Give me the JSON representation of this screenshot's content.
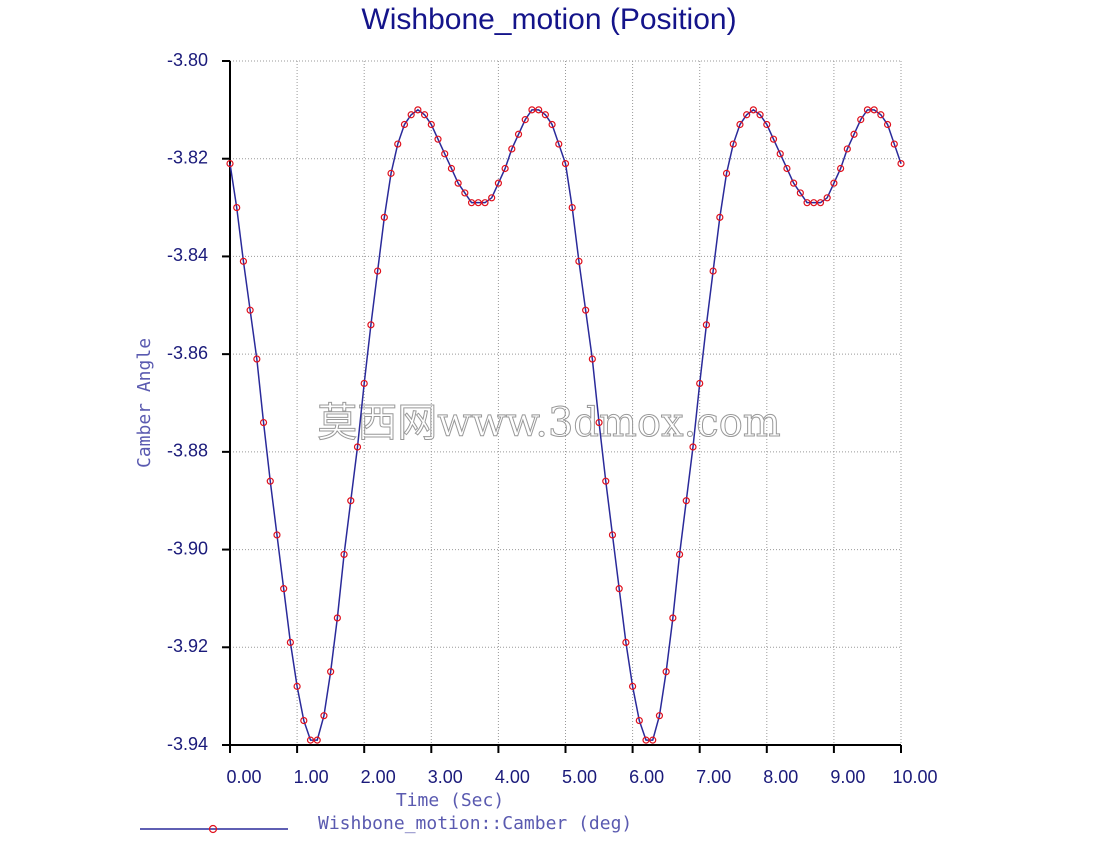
{
  "chart_data": {
    "type": "line",
    "title": "Wishbone_motion (Position)",
    "x_label": "Time (Sec)",
    "y_label": "Camber Angle",
    "watermark": "莫西网www.3dmox.com",
    "grid": true,
    "xlim": [
      0,
      10
    ],
    "xticks": [
      {
        "value": 0,
        "label": "0.00"
      },
      {
        "value": 1,
        "label": "1.00"
      },
      {
        "value": 2,
        "label": "2.00"
      },
      {
        "value": 3,
        "label": "3.00"
      },
      {
        "value": 4,
        "label": "4.00"
      },
      {
        "value": 5,
        "label": "5.00"
      },
      {
        "value": 6,
        "label": "6.00"
      },
      {
        "value": 7,
        "label": "7.00"
      },
      {
        "value": 8,
        "label": "8.00"
      },
      {
        "value": 9,
        "label": "9.00"
      },
      {
        "value": 10,
        "label": "10.00"
      }
    ],
    "ylim": [
      -3.94,
      -3.8
    ],
    "yticks": [
      {
        "value": -3.8,
        "label": "-3.80"
      },
      {
        "value": -3.82,
        "label": "-3.82"
      },
      {
        "value": -3.84,
        "label": "-3.84"
      },
      {
        "value": -3.86,
        "label": "-3.86"
      },
      {
        "value": -3.88,
        "label": "-3.88"
      },
      {
        "value": -3.9,
        "label": "-3.90"
      },
      {
        "value": -3.92,
        "label": "-3.92"
      },
      {
        "value": -3.94,
        "label": "-3.94"
      }
    ],
    "x": [
      0,
      0.1,
      0.2,
      0.3,
      0.4,
      0.5,
      0.6,
      0.7,
      0.8,
      0.9,
      1,
      1.1,
      1.2,
      1.3,
      1.4,
      1.5,
      1.6,
      1.7,
      1.8,
      1.9,
      2,
      2.1,
      2.2,
      2.3,
      2.4,
      2.5,
      2.6,
      2.7,
      2.8,
      2.9,
      3,
      3.1,
      3.2,
      3.3,
      3.4,
      3.5,
      3.6,
      3.7,
      3.8,
      3.9,
      4,
      4.1,
      4.2,
      4.3,
      4.4,
      4.5,
      4.6,
      4.7,
      4.8,
      4.9,
      5,
      5.1,
      5.2,
      5.3,
      5.4,
      5.5,
      5.6,
      5.7,
      5.8,
      5.9,
      6,
      6.1,
      6.2,
      6.3,
      6.4,
      6.5,
      6.6,
      6.7,
      6.8,
      6.9,
      7,
      7.1,
      7.2,
      7.3,
      7.4,
      7.5,
      7.6,
      7.7,
      7.8,
      7.9,
      8,
      8.1,
      8.2,
      8.3,
      8.4,
      8.5,
      8.6,
      8.7,
      8.8,
      8.9,
      9,
      9.1,
      9.2,
      9.3,
      9.4,
      9.5,
      9.6,
      9.7,
      9.8,
      9.9,
      10
    ],
    "series": [
      {
        "name": "Wishbone_motion::Camber (deg)",
        "color": "#2a2a9a",
        "marker_color": "#e0101c",
        "values": [
          -3.821,
          -3.83,
          -3.841,
          -3.851,
          -3.861,
          -3.874,
          -3.886,
          -3.897,
          -3.908,
          -3.919,
          -3.928,
          -3.935,
          -3.939,
          -3.939,
          -3.934,
          -3.925,
          -3.914,
          -3.901,
          -3.89,
          -3.879,
          -3.866,
          -3.854,
          -3.843,
          -3.832,
          -3.823,
          -3.817,
          -3.813,
          -3.811,
          -3.81,
          -3.811,
          -3.813,
          -3.816,
          -3.819,
          -3.822,
          -3.825,
          -3.827,
          -3.829,
          -3.829,
          -3.829,
          -3.828,
          -3.825,
          -3.822,
          -3.818,
          -3.815,
          -3.812,
          -3.81,
          -3.81,
          -3.811,
          -3.813,
          -3.817,
          -3.821,
          -3.83,
          -3.841,
          -3.851,
          -3.861,
          -3.874,
          -3.886,
          -3.897,
          -3.908,
          -3.919,
          -3.928,
          -3.935,
          -3.939,
          -3.939,
          -3.934,
          -3.925,
          -3.914,
          -3.901,
          -3.89,
          -3.879,
          -3.866,
          -3.854,
          -3.843,
          -3.832,
          -3.823,
          -3.817,
          -3.813,
          -3.811,
          -3.81,
          -3.811,
          -3.813,
          -3.816,
          -3.819,
          -3.822,
          -3.825,
          -3.827,
          -3.829,
          -3.829,
          -3.829,
          -3.828,
          -3.825,
          -3.822,
          -3.818,
          -3.815,
          -3.812,
          -3.81,
          -3.81,
          -3.811,
          -3.813,
          -3.817,
          -3.821
        ]
      }
    ]
  }
}
